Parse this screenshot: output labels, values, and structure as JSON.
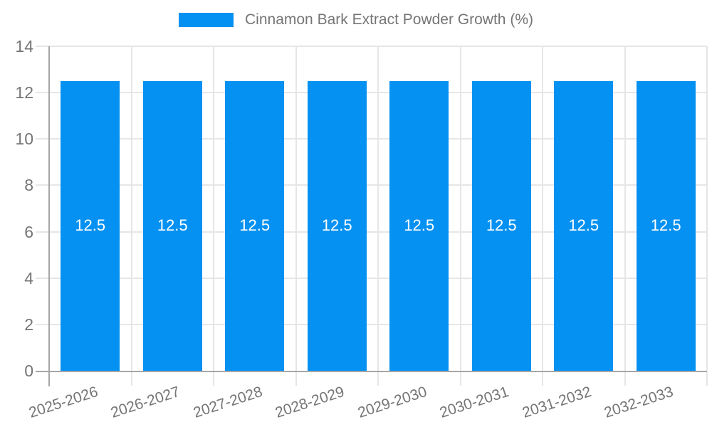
{
  "chart_data": {
    "type": "bar",
    "title": "",
    "legend": "Cinnamon Bark Extract Powder Growth (%)",
    "legend_position": "top-center",
    "categories": [
      "2025-2026",
      "2026-2027",
      "2027-2028",
      "2028-2029",
      "2029-2030",
      "2030-2031",
      "2031-2032",
      "2032-2033"
    ],
    "values": [
      12.5,
      12.5,
      12.5,
      12.5,
      12.5,
      12.5,
      12.5,
      12.5
    ],
    "bar_labels": [
      "12.5",
      "12.5",
      "12.5",
      "12.5",
      "12.5",
      "12.5",
      "12.5",
      "12.5"
    ],
    "xlabel": "",
    "ylabel": "",
    "ylim": [
      0,
      14
    ],
    "yticks": [
      0,
      2,
      4,
      6,
      8,
      10,
      12,
      14
    ],
    "grid": true,
    "colors": {
      "bar": "#0591f2",
      "text": "#757575",
      "grid": "#e6e6e6",
      "axis": "#a6a6a6",
      "bar_label": "#ffffff",
      "background": "#ffffff"
    }
  }
}
